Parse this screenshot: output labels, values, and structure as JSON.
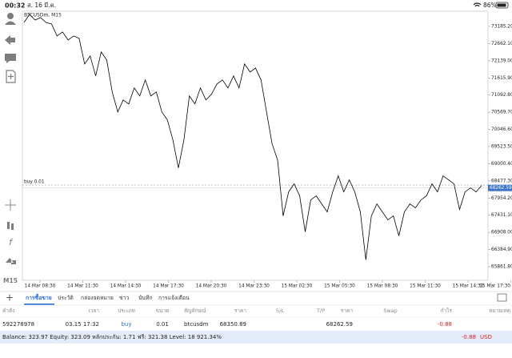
{
  "status_bar": {
    "time": "00:32",
    "date": "ส. 16 มี.ค.",
    "battery": "86%"
  },
  "sidebar": {
    "timeframe": "M15"
  },
  "chart_data": {
    "type": "line",
    "title": "BTCUSDm, M15",
    "x_tick_labels": [
      "14 Mar 08:30",
      "14 Mar 11:30",
      "14 Mar 14:30",
      "14 Mar 17:30",
      "14 Mar 20:30",
      "14 Mar 23:30",
      "15 Mar 02:30",
      "15 Mar 05:30",
      "15 Mar 08:30",
      "15 Mar 11:30",
      "15 Mar 14:30",
      "15 Mar 17:30"
    ],
    "series": [
      {
        "color": "#000000",
        "values": [
          73307,
          73550,
          73380,
          73453,
          73307,
          73258,
          72893,
          73015,
          72771,
          72893,
          72820,
          72040,
          72284,
          71675,
          72406,
          72162,
          71187,
          70578,
          70944,
          70822,
          71309,
          71066,
          71553,
          71066,
          71187,
          70578,
          70335,
          69726,
          68873,
          69726,
          71066,
          70822,
          71309,
          70944,
          71114,
          71431,
          71553,
          71309,
          71675,
          71309,
          72040,
          71796,
          71918,
          71553,
          70578,
          69604,
          69117,
          67411,
          68142,
          68386,
          68021,
          66924,
          67899,
          68021,
          67777,
          67533,
          68142,
          68630,
          68142,
          68508,
          68142,
          67533,
          66072,
          67411,
          67777,
          67533,
          67290,
          67411,
          66803,
          67533,
          67777,
          67655,
          67899,
          68021,
          68386,
          68142,
          68630,
          68508,
          68386,
          67606,
          68142,
          68264,
          68142,
          68337
        ]
      }
    ],
    "ylim": [
      65447.6,
      73648.1
    ],
    "yticks": [
      {
        "value": 73185.2,
        "label": "73185.20"
      },
      {
        "value": 72662.1,
        "label": "72662.10"
      },
      {
        "value": 72139,
        "label": "72139.00"
      },
      {
        "value": 71615.9,
        "label": "71615.90"
      },
      {
        "value": 71092.8,
        "label": "71092.80"
      },
      {
        "value": 70569.7,
        "label": "70569.70"
      },
      {
        "value": 70046.6,
        "label": "70046.60"
      },
      {
        "value": 69523.5,
        "label": "69523.50"
      },
      {
        "value": 69000.4,
        "label": "69000.40"
      },
      {
        "value": 68477.3,
        "label": "68477.30"
      },
      {
        "value": 67954.2,
        "label": "67954.20"
      },
      {
        "value": 67431.1,
        "label": "67431.10"
      },
      {
        "value": 66908,
        "label": "66908.00"
      },
      {
        "value": 66384.9,
        "label": "66384.90"
      },
      {
        "value": 65861.8,
        "label": "65861.80"
      }
    ],
    "order_line_label": "buy 0.01",
    "current_price": 68262.59
  },
  "tabs": [
    "การซื้อขาย",
    "ประวัติ",
    "กล่องจดหมาย",
    "ข่าว",
    "บันทึก",
    "การแจ้งเตือน"
  ],
  "active_tab": 0,
  "table": {
    "headers": [
      "คำสั่ง",
      "เวลา",
      "ประเภท",
      "ขนาด",
      "สัญลักษณ์",
      "ราคา",
      "S/L",
      "T/P",
      "ราคา",
      "Swap",
      "กำไร",
      "หมายเหตุ"
    ],
    "rows": [
      [
        "592278978",
        "03.15 17:32",
        "buy",
        0.01,
        "btcusdm",
        68350.89,
        null,
        null,
        68262.59,
        null,
        -0.88,
        null
      ]
    ]
  },
  "footer": {
    "summary": "Balance: 323.97 Equity: 323.09 หลักประกัน: 1.71 ฟรี: 321.38 Level: 18 921.34%",
    "profit": -0.88,
    "currency": "USD"
  }
}
